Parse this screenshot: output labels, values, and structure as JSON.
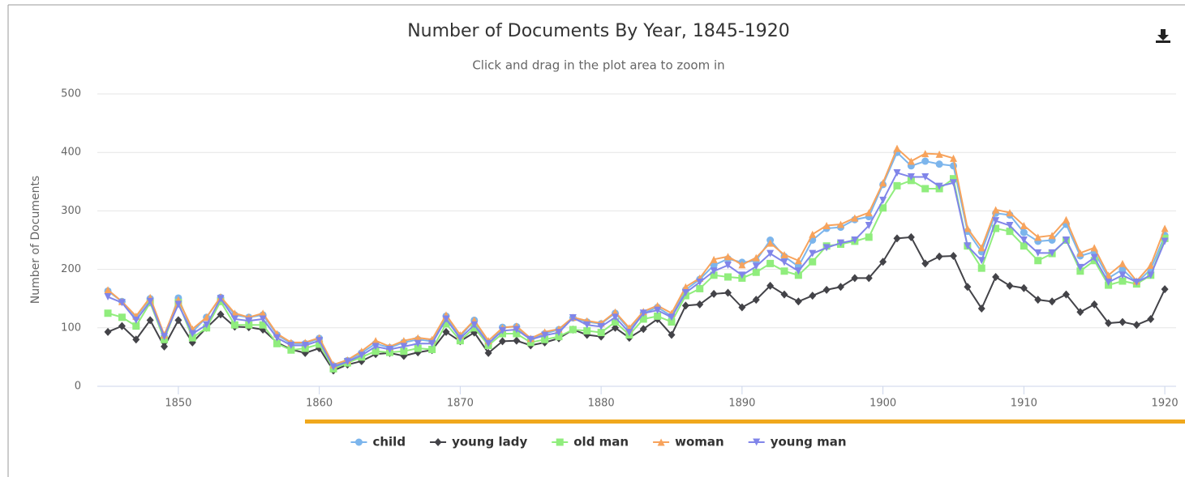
{
  "chart_data": {
    "type": "line",
    "title": "Number of Documents By Year, 1845-1920",
    "subtitle": "Click and drag in the plot area to zoom in",
    "y_label": "Number of Documents",
    "x": [
      1845,
      1846,
      1847,
      1848,
      1849,
      1850,
      1851,
      1852,
      1853,
      1854,
      1855,
      1856,
      1857,
      1858,
      1859,
      1860,
      1861,
      1862,
      1863,
      1864,
      1865,
      1866,
      1867,
      1868,
      1869,
      1870,
      1871,
      1872,
      1873,
      1874,
      1875,
      1876,
      1877,
      1878,
      1879,
      1880,
      1881,
      1882,
      1883,
      1884,
      1885,
      1886,
      1887,
      1888,
      1889,
      1890,
      1891,
      1892,
      1893,
      1894,
      1895,
      1896,
      1897,
      1898,
      1899,
      1900,
      1901,
      1902,
      1903,
      1904,
      1905,
      1906,
      1907,
      1908,
      1909,
      1910,
      1911,
      1912,
      1913,
      1914,
      1915,
      1916,
      1917,
      1918,
      1919,
      1920
    ],
    "xlim": [
      1844.25,
      1920.8
    ],
    "xticks": [
      1850,
      1860,
      1870,
      1880,
      1890,
      1900,
      1910,
      1920
    ],
    "ylim": [
      0,
      500
    ],
    "yticks": [
      0,
      100,
      200,
      300,
      400,
      500
    ],
    "grid": true,
    "legend": "bottom",
    "series": [
      {
        "name": "child",
        "color": "#7cb5ec",
        "marker": "circle",
        "values": [
          163,
          145,
          118,
          150,
          85,
          151,
          93,
          118,
          152,
          122,
          118,
          122,
          88,
          73,
          73,
          82,
          35,
          44,
          57,
          73,
          66,
          75,
          80,
          77,
          120,
          85,
          113,
          72,
          101,
          102,
          80,
          90,
          97,
          117,
          110,
          107,
          125,
          97,
          125,
          135,
          120,
          165,
          183,
          207,
          218,
          212,
          215,
          250,
          222,
          205,
          250,
          270,
          272,
          285,
          290,
          345,
          400,
          377,
          385,
          380,
          377,
          265,
          230,
          296,
          293,
          263,
          248,
          250,
          277,
          223,
          230,
          185,
          200,
          177,
          200,
          258
        ]
      },
      {
        "name": "young lady",
        "color": "#434348",
        "marker": "diamond",
        "values": [
          93,
          103,
          80,
          113,
          68,
          113,
          75,
          100,
          123,
          102,
          101,
          97,
          75,
          63,
          57,
          65,
          27,
          37,
          43,
          55,
          57,
          52,
          58,
          62,
          93,
          77,
          92,
          57,
          77,
          78,
          70,
          75,
          82,
          97,
          88,
          85,
          100,
          83,
          98,
          115,
          88,
          138,
          140,
          158,
          160,
          135,
          148,
          172,
          157,
          145,
          155,
          165,
          170,
          185,
          185,
          213,
          253,
          255,
          210,
          222,
          223,
          170,
          133,
          187,
          172,
          168,
          148,
          145,
          157,
          127,
          140,
          108,
          110,
          105,
          115,
          166
        ]
      },
      {
        "name": "old man",
        "color": "#90ed7d",
        "marker": "square",
        "values": [
          125,
          118,
          103,
          143,
          80,
          143,
          83,
          100,
          145,
          105,
          105,
          105,
          73,
          62,
          65,
          72,
          30,
          40,
          50,
          60,
          58,
          60,
          65,
          63,
          107,
          78,
          100,
          70,
          90,
          90,
          75,
          80,
          85,
          97,
          95,
          92,
          110,
          88,
          115,
          120,
          110,
          155,
          167,
          190,
          187,
          185,
          195,
          210,
          197,
          190,
          213,
          240,
          243,
          248,
          255,
          305,
          343,
          352,
          338,
          338,
          355,
          240,
          202,
          270,
          265,
          240,
          215,
          227,
          250,
          197,
          215,
          173,
          180,
          175,
          190,
          253
        ]
      },
      {
        "name": "woman",
        "color": "#f7a35c",
        "marker": "triangle",
        "values": [
          165,
          145,
          120,
          152,
          88,
          148,
          98,
          118,
          153,
          125,
          118,
          125,
          90,
          75,
          75,
          83,
          37,
          45,
          60,
          78,
          68,
          78,
          83,
          80,
          122,
          88,
          113,
          78,
          100,
          103,
          82,
          93,
          98,
          118,
          112,
          108,
          127,
          100,
          128,
          138,
          125,
          170,
          185,
          217,
          222,
          208,
          220,
          245,
          225,
          215,
          260,
          275,
          277,
          288,
          297,
          348,
          407,
          385,
          398,
          397,
          390,
          270,
          237,
          302,
          297,
          275,
          255,
          258,
          285,
          228,
          237,
          190,
          210,
          180,
          207,
          270
        ]
      },
      {
        "name": "young man",
        "color": "#8085e9",
        "marker": "triangle-down",
        "values": [
          153,
          143,
          113,
          145,
          85,
          140,
          90,
          105,
          150,
          115,
          112,
          115,
          83,
          70,
          70,
          78,
          33,
          42,
          53,
          68,
          63,
          68,
          73,
          73,
          115,
          82,
          105,
          73,
          95,
          97,
          80,
          87,
          92,
          117,
          105,
          102,
          118,
          92,
          125,
          130,
          118,
          160,
          178,
          197,
          207,
          190,
          205,
          227,
          212,
          197,
          227,
          237,
          245,
          250,
          275,
          318,
          365,
          358,
          358,
          342,
          348,
          240,
          215,
          283,
          275,
          250,
          228,
          228,
          250,
          203,
          220,
          178,
          190,
          178,
          190,
          248
        ]
      }
    ]
  }
}
